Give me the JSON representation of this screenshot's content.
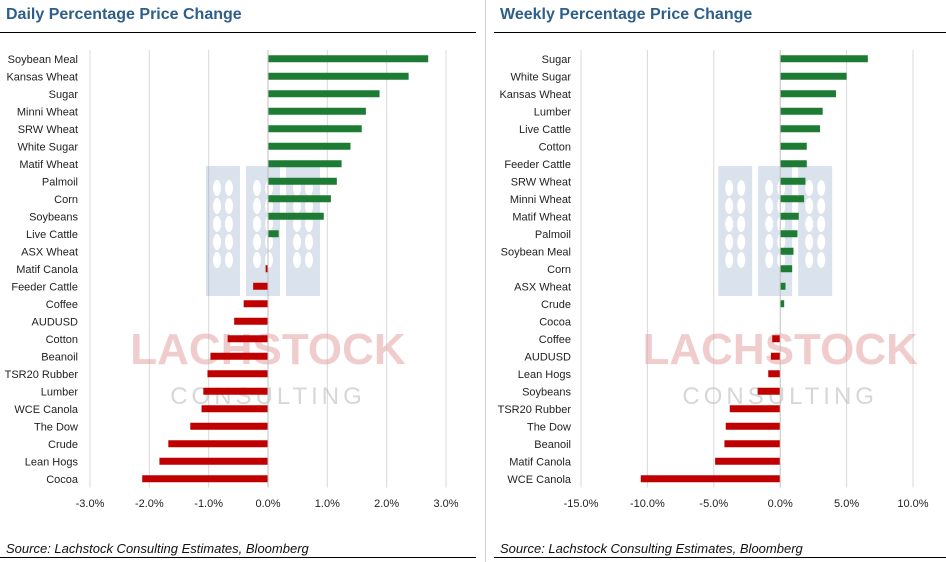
{
  "charts": [
    {
      "title": "Daily Percentage Price Change",
      "source": "Source: Lachstock Consulting Estimates, Bloomberg",
      "watermark": {
        "text": "LACHSTOCK",
        "subtext": "CONSULTING"
      }
    },
    {
      "title": "Weekly Percentage Price Change",
      "source": "Source: Lachstock Consulting Estimates, Bloomberg",
      "watermark": {
        "text": "LACHSTOCK",
        "subtext": "CONSULTING"
      }
    }
  ],
  "colors": {
    "positive": "#1e7b34",
    "negative": "#c00000",
    "title": "#2e5f8a",
    "grid": "#d9d9d9"
  },
  "chart_data": [
    {
      "type": "bar",
      "orientation": "horizontal",
      "title": "Daily Percentage Price Change",
      "xlabel": "",
      "ylabel": "",
      "xlim": [
        -0.03,
        0.03
      ],
      "xticks": [
        -0.03,
        -0.02,
        -0.01,
        0,
        0.01,
        0.02,
        0.03
      ],
      "xtick_labels": [
        "-3.0%",
        "-2.0%",
        "-1.0%",
        "0.0%",
        "1.0%",
        "2.0%",
        "3.0%"
      ],
      "grid": "vertical",
      "categories": [
        "Soybean Meal",
        "Kansas Wheat",
        "Sugar",
        "Minni Wheat",
        "SRW Wheat",
        "White Sugar",
        "Matif Wheat",
        "Palmoil",
        "Corn",
        "Soybeans",
        "Live Cattle",
        "ASX Wheat",
        "Matif Canola",
        "Feeder Cattle",
        "Coffee",
        "AUDUSD",
        "Cotton",
        "Beanoil",
        "TSR20 Rubber",
        "Lumber",
        "WCE Canola",
        "The Dow",
        "Crude",
        "Lean Hogs",
        "Cocoa"
      ],
      "values": [
        0.027,
        0.0237,
        0.0188,
        0.0165,
        0.0158,
        0.0139,
        0.0124,
        0.0116,
        0.0106,
        0.0094,
        0.0018,
        0.0,
        -0.0004,
        -0.0025,
        -0.0041,
        -0.0057,
        -0.0068,
        -0.0097,
        -0.0102,
        -0.0109,
        -0.0112,
        -0.0131,
        -0.0168,
        -0.0183,
        -0.0212
      ]
    },
    {
      "type": "bar",
      "orientation": "horizontal",
      "title": "Weekly Percentage Price Change",
      "xlabel": "",
      "ylabel": "",
      "xlim": [
        -0.15,
        0.1
      ],
      "xticks": [
        -0.15,
        -0.1,
        -0.05,
        0,
        0.05,
        0.1
      ],
      "xtick_labels": [
        "-15.0%",
        "-10.0%",
        "-5.0%",
        "0.0%",
        "5.0%",
        "10.0%"
      ],
      "grid": "vertical",
      "categories": [
        "Sugar",
        "White Sugar",
        "Kansas Wheat",
        "Lumber",
        "Live Cattle",
        "Cotton",
        "Feeder Cattle",
        "SRW Wheat",
        "Minni Wheat",
        "Matif Wheat",
        "Palmoil",
        "Soybean Meal",
        "Corn",
        "ASX Wheat",
        "Crude",
        "Cocoa",
        "Coffee",
        "AUDUSD",
        "Lean Hogs",
        "Soybeans",
        "TSR20 Rubber",
        "The Dow",
        "Beanoil",
        "Matif Canola",
        "WCE Canola"
      ],
      "values": [
        0.066,
        0.05,
        0.042,
        0.032,
        0.03,
        0.02,
        0.02,
        0.019,
        0.018,
        0.014,
        0.013,
        0.01,
        0.009,
        0.004,
        0.003,
        0.0,
        -0.006,
        -0.007,
        -0.009,
        -0.017,
        -0.038,
        -0.041,
        -0.042,
        -0.049,
        -0.105
      ]
    }
  ]
}
